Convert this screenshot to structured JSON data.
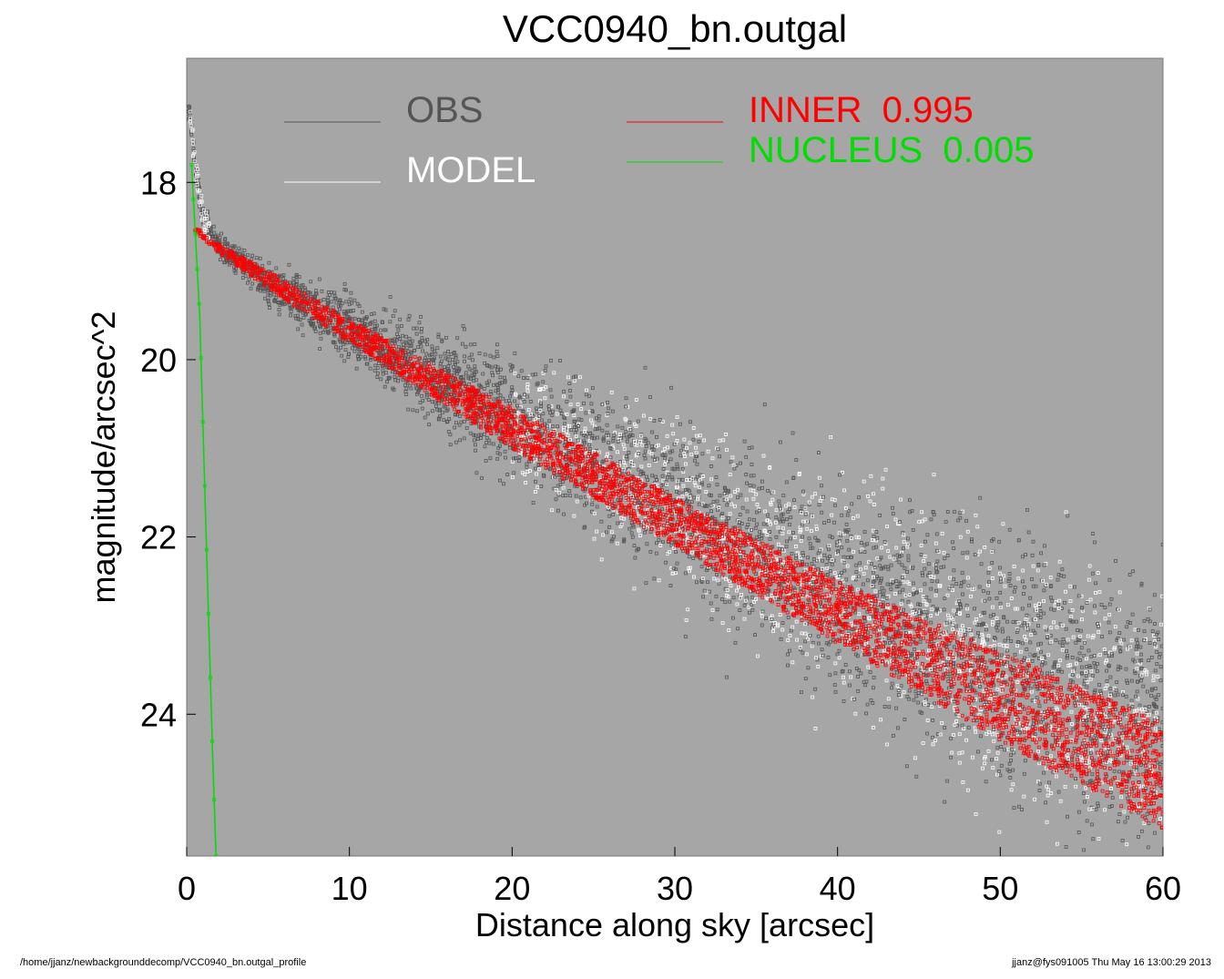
{
  "chart_data": {
    "type": "scatter",
    "title": "VCC0940_bn.outgal",
    "xlabel": "Distance along sky [arcsec]",
    "ylabel": "magnitude/arcsec^2",
    "xlim": [
      0,
      60
    ],
    "ylim": [
      25.6,
      16.6
    ],
    "y_inverted": true,
    "xticks": [
      0,
      10,
      20,
      30,
      40,
      50,
      60
    ],
    "yticks": [
      18,
      20,
      22,
      24
    ],
    "grid": false,
    "background_color": "#a6a6a6",
    "legend_position": "top",
    "legend": [
      {
        "label": "OBS",
        "color": "#555555"
      },
      {
        "label": "MODEL",
        "color": "#ffffff"
      },
      {
        "label": "INNER  0.995",
        "color": "#ff0000"
      },
      {
        "label": "NUCLEUS  0.005",
        "color": "#00dd00"
      }
    ],
    "series": [
      {
        "name": "OBS",
        "color": "#555555",
        "description_points_x": [
          0.2,
          0.5,
          1,
          2,
          5,
          10,
          15,
          20,
          25,
          30,
          35,
          40,
          45,
          50,
          55,
          60
        ],
        "description_points_y": [
          17.2,
          17.8,
          18.4,
          18.7,
          19.1,
          19.6,
          20.1,
          20.6,
          21.0,
          21.5,
          22.0,
          22.4,
          22.8,
          23.2,
          23.6,
          24.0
        ]
      },
      {
        "name": "MODEL",
        "color": "#ffffff",
        "description_points_x": [
          0.5,
          1,
          2,
          5,
          10,
          20,
          30,
          40,
          50,
          60
        ],
        "description_points_y": [
          18.0,
          18.4,
          18.65,
          19.1,
          19.6,
          20.6,
          21.5,
          22.4,
          23.2,
          24.0
        ]
      },
      {
        "name": "INNER  0.995",
        "color": "#ff0000",
        "upper_edge_x": [
          0.5,
          2,
          5,
          10,
          20,
          30,
          40,
          50,
          60
        ],
        "upper_edge_y": [
          18.5,
          18.7,
          19.0,
          19.55,
          20.55,
          21.55,
          22.5,
          23.3,
          24.1
        ],
        "lower_edge_x": [
          0.5,
          2,
          5,
          10,
          20,
          30,
          40,
          50,
          60
        ],
        "lower_edge_y": [
          18.55,
          18.8,
          19.2,
          19.8,
          21.0,
          22.1,
          23.2,
          24.3,
          25.3
        ]
      },
      {
        "name": "NUCLEUS  0.005",
        "color": "#00dd00",
        "x": [
          0.3,
          0.8,
          1.2,
          1.6,
          1.8
        ],
        "y": [
          17.8,
          19.5,
          22.0,
          24.5,
          25.6
        ]
      }
    ]
  },
  "footer": {
    "left": "/home/jjanz/newbackgrounddecomp/VCC0940_bn.outgal_profile",
    "right": "jjanz@fys091005  Thu May 16 13:00:29 2013"
  }
}
